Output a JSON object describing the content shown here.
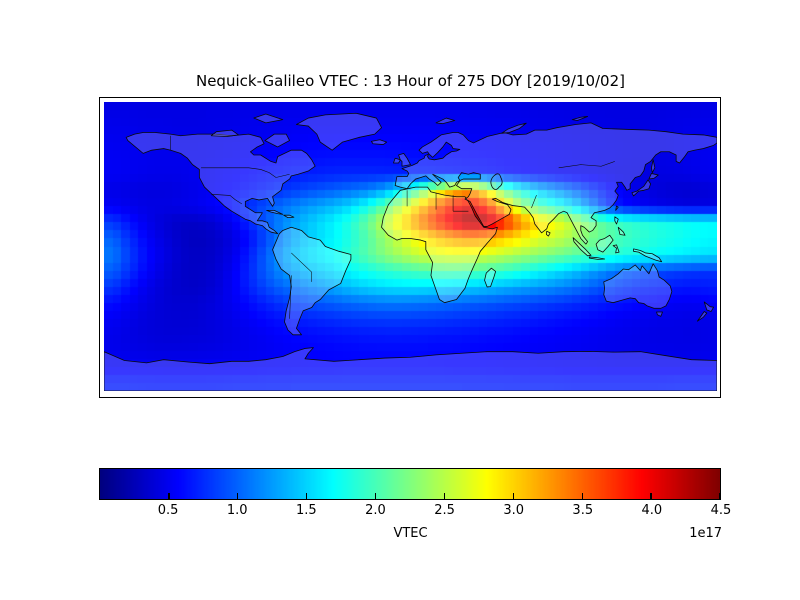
{
  "figure": {
    "title": "Nequick-Galileo VTEC : 13 Hour of 275 DOY [2019/10/02]",
    "background": "#ffffff"
  },
  "chart_data": {
    "type": "heatmap",
    "title": "Nequick-Galileo VTEC : 13 Hour of 275 DOY [2019/10/02]",
    "map": "world equirectangular, coastlines and country borders overlaid",
    "lon_range": [
      -180,
      180
    ],
    "lat_range": [
      90,
      -90
    ],
    "grid_step_deg": 10,
    "lon_centers_start": -175,
    "lat_centers_start": 85,
    "colormap": "jet",
    "vmin": 0,
    "vmax": 4.5,
    "colorbar": {
      "label": "VTEC",
      "offset_text": "1e17",
      "ticks": [
        "0.5",
        "1.0",
        "1.5",
        "2.0",
        "2.5",
        "3.0",
        "3.5",
        "4.0",
        "4.5"
      ],
      "tick_values": [
        0.5,
        1.0,
        1.5,
        2.0,
        2.5,
        3.0,
        3.5,
        4.0,
        4.5
      ]
    },
    "values_scale": "1e17",
    "values": [
      [
        0.45,
        0.45,
        0.44,
        0.44,
        0.44,
        0.44,
        0.45,
        0.45,
        0.46,
        0.46,
        0.47,
        0.47,
        0.48,
        0.48,
        0.48,
        0.48,
        0.48,
        0.48,
        0.48,
        0.48,
        0.48,
        0.47,
        0.47,
        0.46,
        0.46,
        0.45,
        0.45,
        0.44,
        0.44,
        0.43,
        0.43,
        0.43,
        0.43,
        0.44,
        0.44,
        0.45
      ],
      [
        0.48,
        0.47,
        0.46,
        0.46,
        0.45,
        0.45,
        0.46,
        0.47,
        0.48,
        0.49,
        0.5,
        0.51,
        0.52,
        0.52,
        0.52,
        0.52,
        0.52,
        0.52,
        0.52,
        0.52,
        0.51,
        0.51,
        0.5,
        0.5,
        0.49,
        0.48,
        0.47,
        0.46,
        0.45,
        0.45,
        0.44,
        0.44,
        0.45,
        0.46,
        0.47,
        0.48
      ],
      [
        0.5,
        0.49,
        0.48,
        0.47,
        0.47,
        0.47,
        0.48,
        0.49,
        0.5,
        0.52,
        0.53,
        0.55,
        0.56,
        0.57,
        0.57,
        0.57,
        0.57,
        0.57,
        0.56,
        0.56,
        0.55,
        0.54,
        0.53,
        0.52,
        0.51,
        0.5,
        0.49,
        0.48,
        0.47,
        0.46,
        0.45,
        0.45,
        0.45,
        0.46,
        0.48,
        0.49
      ],
      [
        0.52,
        0.5,
        0.49,
        0.48,
        0.48,
        0.49,
        0.5,
        0.52,
        0.54,
        0.56,
        0.58,
        0.6,
        0.62,
        0.63,
        0.63,
        0.63,
        0.63,
        0.62,
        0.62,
        0.61,
        0.6,
        0.59,
        0.58,
        0.56,
        0.55,
        0.53,
        0.52,
        0.5,
        0.49,
        0.47,
        0.46,
        0.45,
        0.45,
        0.46,
        0.48,
        0.5
      ],
      [
        0.52,
        0.5,
        0.48,
        0.47,
        0.47,
        0.49,
        0.52,
        0.55,
        0.58,
        0.62,
        0.65,
        0.68,
        0.7,
        0.72,
        0.73,
        0.73,
        0.72,
        0.71,
        0.7,
        0.69,
        0.67,
        0.65,
        0.63,
        0.6,
        0.58,
        0.55,
        0.52,
        0.5,
        0.48,
        0.46,
        0.44,
        0.43,
        0.43,
        0.44,
        0.46,
        0.49
      ],
      [
        0.46,
        0.44,
        0.42,
        0.42,
        0.44,
        0.48,
        0.53,
        0.58,
        0.64,
        0.7,
        0.78,
        0.85,
        0.92,
        0.98,
        1.05,
        1.12,
        1.28,
        1.6,
        2.05,
        2.6,
        3.05,
        3.2,
        2.75,
        2.15,
        1.75,
        1.45,
        1.25,
        1.05,
        0.85,
        0.65,
        0.52,
        0.45,
        0.4,
        0.37,
        0.36,
        0.4
      ],
      [
        0.52,
        0.48,
        0.45,
        0.44,
        0.46,
        0.5,
        0.56,
        0.64,
        0.78,
        0.92,
        1.06,
        1.18,
        1.28,
        1.38,
        1.52,
        1.75,
        2.1,
        2.55,
        3.0,
        3.45,
        3.85,
        4.05,
        3.7,
        3.0,
        2.4,
        2.0,
        1.8,
        1.55,
        1.2,
        0.8,
        0.6,
        0.52,
        0.47,
        0.44,
        0.42,
        0.44
      ],
      [
        0.8,
        0.62,
        0.48,
        0.38,
        0.32,
        0.32,
        0.38,
        0.52,
        0.72,
        0.95,
        1.18,
        1.35,
        1.5,
        1.65,
        1.85,
        2.15,
        2.55,
        2.95,
        3.35,
        3.75,
        4.1,
        4.4,
        4.3,
        3.85,
        3.35,
        3.0,
        2.8,
        2.55,
        2.25,
        2.05,
        1.92,
        1.85,
        1.8,
        1.75,
        1.7,
        1.68
      ],
      [
        1.0,
        0.75,
        0.55,
        0.42,
        0.32,
        0.28,
        0.32,
        0.42,
        0.6,
        0.88,
        1.15,
        1.38,
        1.52,
        1.65,
        1.82,
        2.05,
        2.35,
        2.62,
        2.85,
        3.05,
        3.22,
        3.3,
        3.22,
        3.05,
        2.88,
        2.7,
        2.58,
        2.42,
        2.25,
        2.1,
        1.98,
        1.9,
        1.83,
        1.78,
        1.72,
        1.68
      ],
      [
        1.1,
        0.82,
        0.6,
        0.45,
        0.34,
        0.3,
        0.34,
        0.46,
        0.68,
        0.98,
        1.28,
        1.5,
        1.62,
        1.72,
        1.9,
        2.08,
        2.28,
        2.45,
        2.58,
        2.66,
        2.7,
        2.68,
        2.6,
        2.5,
        2.4,
        2.3,
        2.2,
        2.1,
        2.0,
        1.9,
        1.82,
        1.76,
        1.7,
        1.65,
        1.6,
        1.56
      ],
      [
        0.98,
        0.76,
        0.56,
        0.42,
        0.33,
        0.31,
        0.36,
        0.5,
        0.72,
        0.98,
        1.2,
        1.36,
        1.46,
        1.56,
        1.68,
        1.78,
        1.88,
        1.95,
        2.02,
        2.06,
        2.08,
        2.05,
        2.0,
        1.92,
        1.82,
        1.7,
        1.58,
        1.45,
        1.3,
        1.15,
        1.02,
        0.94,
        0.88,
        0.84,
        0.8,
        0.78
      ],
      [
        0.8,
        0.62,
        0.48,
        0.38,
        0.33,
        0.32,
        0.38,
        0.52,
        0.7,
        0.88,
        1.02,
        1.12,
        1.22,
        1.32,
        1.42,
        1.5,
        1.55,
        1.58,
        1.58,
        1.56,
        1.52,
        1.48,
        1.42,
        1.36,
        1.3,
        1.24,
        1.18,
        1.1,
        1.0,
        0.9,
        0.8,
        0.74,
        0.7,
        0.67,
        0.65,
        0.68
      ],
      [
        0.62,
        0.52,
        0.44,
        0.38,
        0.36,
        0.37,
        0.42,
        0.5,
        0.6,
        0.7,
        0.8,
        0.87,
        0.93,
        0.98,
        1.03,
        1.07,
        1.1,
        1.1,
        1.08,
        1.05,
        1.02,
        0.98,
        0.95,
        0.91,
        0.88,
        0.84,
        0.8,
        0.76,
        0.71,
        0.66,
        0.62,
        0.58,
        0.55,
        0.52,
        0.51,
        0.54
      ],
      [
        0.52,
        0.46,
        0.41,
        0.38,
        0.37,
        0.38,
        0.42,
        0.47,
        0.53,
        0.59,
        0.64,
        0.69,
        0.73,
        0.76,
        0.79,
        0.81,
        0.82,
        0.82,
        0.81,
        0.8,
        0.78,
        0.76,
        0.74,
        0.71,
        0.69,
        0.66,
        0.63,
        0.6,
        0.57,
        0.54,
        0.51,
        0.49,
        0.47,
        0.46,
        0.45,
        0.47
      ],
      [
        0.48,
        0.44,
        0.41,
        0.39,
        0.39,
        0.4,
        0.42,
        0.45,
        0.49,
        0.52,
        0.56,
        0.59,
        0.61,
        0.63,
        0.65,
        0.66,
        0.67,
        0.67,
        0.66,
        0.65,
        0.64,
        0.63,
        0.61,
        0.6,
        0.58,
        0.56,
        0.55,
        0.53,
        0.51,
        0.49,
        0.48,
        0.46,
        0.45,
        0.45,
        0.44,
        0.46
      ],
      [
        0.48,
        0.46,
        0.44,
        0.43,
        0.43,
        0.44,
        0.45,
        0.47,
        0.49,
        0.51,
        0.53,
        0.55,
        0.56,
        0.57,
        0.58,
        0.59,
        0.59,
        0.59,
        0.59,
        0.58,
        0.58,
        0.57,
        0.56,
        0.55,
        0.54,
        0.53,
        0.52,
        0.51,
        0.5,
        0.49,
        0.48,
        0.47,
        0.47,
        0.46,
        0.46,
        0.47
      ],
      [
        0.53,
        0.52,
        0.52,
        0.51,
        0.51,
        0.51,
        0.52,
        0.52,
        0.53,
        0.54,
        0.55,
        0.55,
        0.56,
        0.56,
        0.57,
        0.57,
        0.57,
        0.57,
        0.57,
        0.57,
        0.56,
        0.56,
        0.56,
        0.55,
        0.55,
        0.54,
        0.54,
        0.53,
        0.53,
        0.52,
        0.52,
        0.52,
        0.52,
        0.52,
        0.52,
        0.53
      ],
      [
        0.68,
        0.68,
        0.67,
        0.67,
        0.67,
        0.67,
        0.67,
        0.68,
        0.68,
        0.69,
        0.69,
        0.7,
        0.7,
        0.7,
        0.7,
        0.7,
        0.7,
        0.7,
        0.7,
        0.7,
        0.7,
        0.69,
        0.69,
        0.69,
        0.68,
        0.68,
        0.68,
        0.67,
        0.67,
        0.67,
        0.67,
        0.67,
        0.67,
        0.68,
        0.68,
        0.68
      ]
    ]
  }
}
